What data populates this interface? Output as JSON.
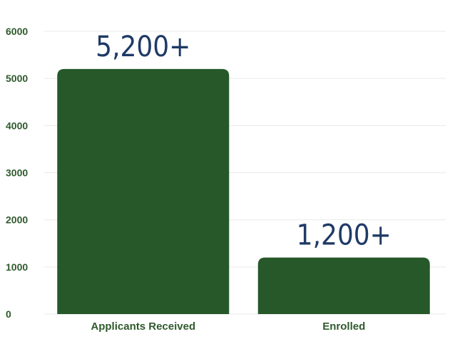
{
  "chart_data": {
    "type": "bar",
    "categories": [
      "Applicants Received",
      "Enrolled"
    ],
    "values": [
      5200,
      1200
    ],
    "data_labels": [
      "5,200+",
      "1,200+"
    ],
    "yticks": [
      "0",
      "1000",
      "2000",
      "3000",
      "4000",
      "5000",
      "6000"
    ],
    "ylim": [
      0,
      6000
    ],
    "grid": true,
    "colors": {
      "bar": "#265829",
      "tick_text": "#2f5a2c",
      "data_label": "#1f3a66",
      "grid": "#e9e9e9"
    }
  }
}
